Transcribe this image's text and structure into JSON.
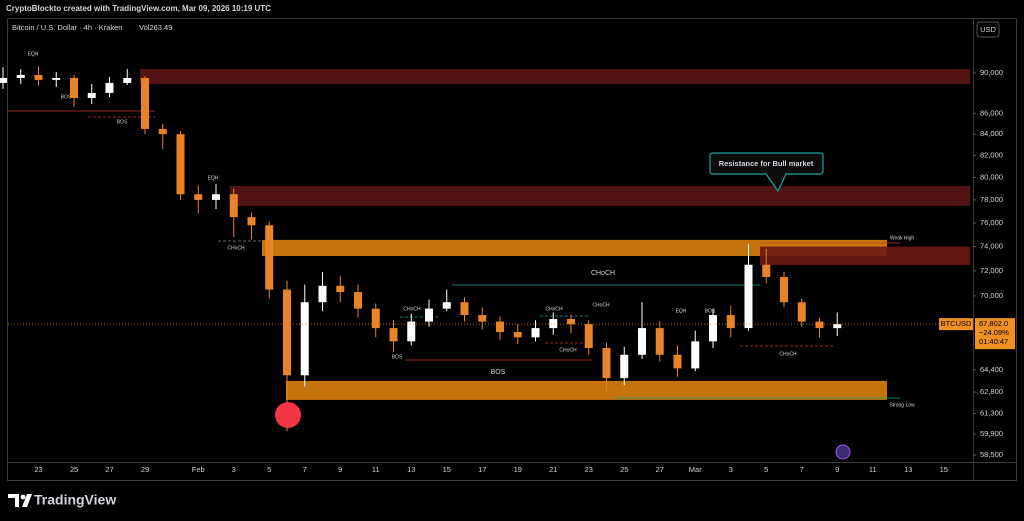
{
  "header": "CryptoBlockto created with TradingView.com, Mar 09, 2026 10:19 UTC",
  "logo": "TradingView",
  "chart_data": {
    "type": "candlestick",
    "title": "Bitcoin / U.S. Dollar · 4h · Kraken",
    "subtitle": "Vol263.49",
    "currency": "USD",
    "categories": [
      null,
      null,
      "23",
      null,
      "25",
      null,
      "27",
      null,
      "29",
      null,
      null,
      "Feb",
      null,
      "3",
      null,
      "5",
      null,
      "7",
      null,
      "9",
      null,
      "11",
      null,
      "13",
      null,
      "15",
      null,
      "17",
      null,
      "19",
      null,
      "21",
      null,
      "23",
      null,
      "25",
      null,
      "27",
      null,
      "Mar",
      null,
      "3",
      null,
      "5",
      null,
      "7",
      null,
      "9",
      null,
      "11",
      null,
      "13",
      null,
      "15"
    ],
    "open": [
      89000,
      89500,
      89800,
      89300,
      89500,
      87500,
      88000,
      89000,
      89500,
      84500,
      84000,
      78500,
      78000,
      78500,
      76500,
      75800,
      70500,
      64000,
      69500,
      70800,
      70300,
      69000,
      67500,
      66500,
      68000,
      69000,
      69500,
      68500,
      68000,
      67200,
      66800,
      67500,
      68200,
      67800,
      66000,
      63800,
      65500,
      67500,
      65500,
      64500,
      66500,
      68500,
      67500,
      72500,
      71500,
      69500,
      68000,
      67500,
      null,
      null,
      null,
      null,
      null,
      null
    ],
    "high": [
      90600,
      90400,
      90700,
      90100,
      89800,
      88900,
      89600,
      90400,
      89700,
      85000,
      84300,
      79300,
      79400,
      79000,
      76900,
      76100,
      71200,
      70900,
      71900,
      71600,
      70900,
      69400,
      68100,
      68600,
      69700,
      70500,
      69900,
      69100,
      68400,
      67800,
      68100,
      68700,
      68500,
      68100,
      66400,
      66100,
      69500,
      68000,
      66200,
      67300,
      69000,
      69200,
      74200,
      73800,
      71900,
      69800,
      68300,
      68700,
      null,
      null,
      null,
      null,
      null,
      null
    ],
    "low": [
      88400,
      88900,
      88700,
      88600,
      86600,
      86900,
      87600,
      88800,
      84000,
      82600,
      78000,
      76800,
      77200,
      74800,
      74600,
      69800,
      60100,
      63200,
      68800,
      69500,
      68300,
      66800,
      65700,
      66200,
      67600,
      68800,
      68000,
      67400,
      66600,
      66300,
      66500,
      67000,
      67100,
      65500,
      62900,
      63300,
      65200,
      65000,
      63900,
      64300,
      66000,
      66800,
      67300,
      71000,
      69100,
      67600,
      66800,
      66900,
      null,
      null,
      null,
      null,
      null,
      null
    ],
    "close": [
      89500,
      89800,
      89300,
      89500,
      87500,
      88000,
      89000,
      89500,
      84500,
      84000,
      78500,
      78000,
      78500,
      76500,
      75800,
      70500,
      64000,
      69500,
      70800,
      70300,
      69000,
      67500,
      66500,
      68000,
      69000,
      69500,
      68500,
      68000,
      67200,
      66800,
      67500,
      68200,
      67800,
      66000,
      63800,
      65500,
      67500,
      65500,
      64500,
      66500,
      68500,
      67500,
      72500,
      71500,
      69500,
      68000,
      67500,
      67802,
      null,
      null,
      null,
      null,
      null,
      null
    ],
    "up_color": "#ffffff",
    "down_color": "#e8832a",
    "log_scale": true,
    "ylim": [
      58040,
      95760
    ],
    "yticks": [
      {
        "value": 90000,
        "label": "90,000"
      },
      {
        "value": 86000,
        "label": "86,000"
      },
      {
        "value": 84000,
        "label": "84,000"
      },
      {
        "value": 82000,
        "label": "82,000"
      },
      {
        "value": 80000,
        "label": "80,000"
      },
      {
        "value": 78000,
        "label": "78,000"
      },
      {
        "value": 76000,
        "label": "76,000"
      },
      {
        "value": 74000,
        "label": "74,000"
      },
      {
        "value": 72000,
        "label": "72,000"
      },
      {
        "value": 70000,
        "label": "70,000"
      },
      {
        "value": 64400,
        "label": "64,400"
      },
      {
        "value": 62800,
        "label": "62,800"
      },
      {
        "value": 61300,
        "label": "61,300"
      },
      {
        "value": 59900,
        "label": "59,900"
      },
      {
        "value": 58500,
        "label": "58,500"
      }
    ],
    "last_price": {
      "symbol": "BTCUSD",
      "value": 67802,
      "label": "67,802.0",
      "change": "−24.09%",
      "countdown": "01:40:47",
      "color": "#f0901e"
    },
    "zones": [
      {
        "top": 90407,
        "bottom": 88891,
        "color": "#5a1515"
      },
      {
        "top": 79240,
        "bottom": 77470,
        "color": "#5a1515"
      },
      {
        "top": 74560,
        "bottom": 73220,
        "color": "#d9800e"
      },
      {
        "top": 74000,
        "bottom": 72480,
        "color": "#6e1a14"
      },
      {
        "top": 63600,
        "bottom": 62250,
        "color": "#d9800e"
      }
    ],
    "callout": "Resistance for Bull market",
    "annotations": [
      "EQH",
      "BOS",
      "BOS",
      "EQH",
      "CHoCH",
      "CHoCH",
      "BOS",
      "CHoCH",
      "CHoCH",
      "CHoCH",
      "CHoCH",
      "BOS",
      "EQH",
      "BOS",
      "CHoCH",
      "Weak High",
      "Strong Low"
    ]
  }
}
